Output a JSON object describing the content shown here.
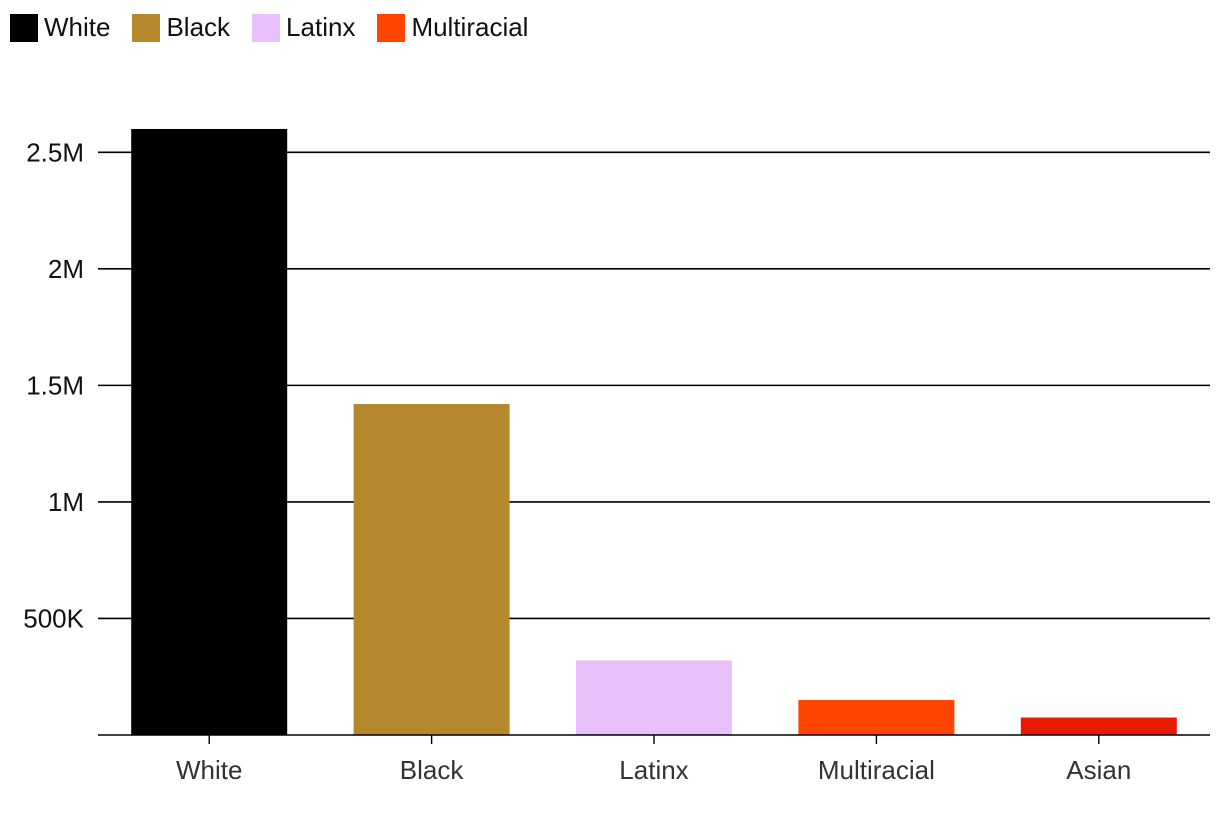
{
  "chart_data": {
    "type": "bar",
    "title": "",
    "xlabel": "",
    "ylabel": "",
    "categories": [
      "White",
      "Black",
      "Latinx",
      "Multiracial",
      "Asian"
    ],
    "values": [
      2600000,
      1420000,
      320000,
      150000,
      75000
    ],
    "colors": [
      "#000000",
      "#b5882c",
      "#e8c0fb",
      "#ff4400",
      "#e81a00"
    ],
    "ylim": [
      0,
      2750000
    ],
    "yticks": [
      {
        "value": 500000,
        "label": "500K"
      },
      {
        "value": 1000000,
        "label": "1M"
      },
      {
        "value": 1500000,
        "label": "1.5M"
      },
      {
        "value": 2000000,
        "label": "2M"
      },
      {
        "value": 2500000,
        "label": "2.5M"
      }
    ],
    "grid": true,
    "legend_position": "top-left",
    "legend": [
      {
        "label": "White",
        "color": "#000000"
      },
      {
        "label": "Black",
        "color": "#b5882c"
      },
      {
        "label": "Latinx",
        "color": "#e8c0fb"
      },
      {
        "label": "Multiracial",
        "color": "#ff4400"
      }
    ]
  }
}
